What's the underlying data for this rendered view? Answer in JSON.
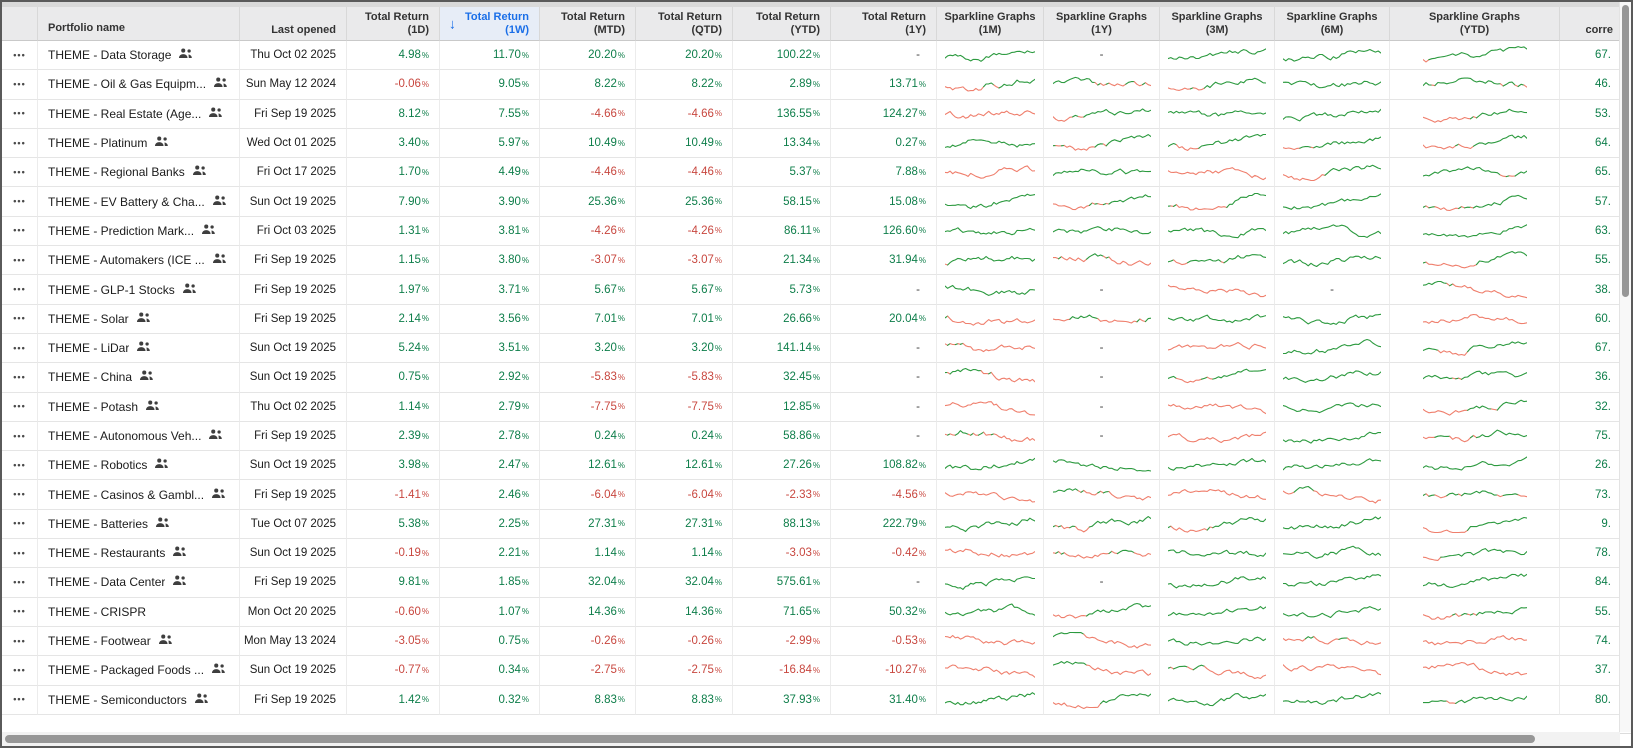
{
  "colors": {
    "positive": "#0e7e4a",
    "negative": "#c8473f",
    "spark_green": "#2c9a3f",
    "spark_red": "#ef7f6d",
    "sort_blue": "#1b6fe8",
    "header_bg": "#eaeaeb",
    "sorted_header_bg": "#e7edf7"
  },
  "icons": {
    "sort_desc": "↓",
    "row_menu": "•••",
    "shared_users": "shared-users"
  },
  "formats": {
    "percent_suffix": "%",
    "empty": "-"
  },
  "sort": {
    "column": "tr_1w",
    "direction": "desc"
  },
  "table": {
    "columns": [
      {
        "id": "menu",
        "label": ""
      },
      {
        "id": "name",
        "label": "Portfolio name"
      },
      {
        "id": "last_opened",
        "label": "Last opened"
      },
      {
        "id": "tr_1d",
        "l1": "Total Return",
        "l2": "(1D)"
      },
      {
        "id": "tr_1w",
        "l1": "Total Return",
        "l2": "(1W)",
        "sorted": "desc"
      },
      {
        "id": "tr_mtd",
        "l1": "Total Return",
        "l2": "(MTD)"
      },
      {
        "id": "tr_qtd",
        "l1": "Total Return",
        "l2": "(QTD)"
      },
      {
        "id": "tr_ytd",
        "l1": "Total Return",
        "l2": "(YTD)"
      },
      {
        "id": "tr_1y",
        "l1": "Total Return",
        "l2": "(1Y)"
      },
      {
        "id": "spark_1m",
        "l1": "Sparkline Graphs",
        "l2": "(1M)"
      },
      {
        "id": "spark_1y",
        "l1": "Sparkline Graphs",
        "l2": "(1Y)"
      },
      {
        "id": "spark_3m",
        "l1": "Sparkline Graphs",
        "l2": "(3M)"
      },
      {
        "id": "spark_6m",
        "l1": "Sparkline Graphs",
        "l2": "(6M)"
      },
      {
        "id": "spark_ytd",
        "l1": "Sparkline Graphs",
        "l2": "(YTD)"
      },
      {
        "id": "corre",
        "label": "corre"
      }
    ],
    "rows": [
      {
        "name": "THEME - Data Storage",
        "shared": true,
        "last_opened": "Thu Oct 02 2025",
        "returns": {
          "1d": "4.98",
          "1w": "11.70",
          "mtd": "20.20",
          "qtd": "20.20",
          "ytd": "100.22",
          "1y": null
        },
        "sparklines": {
          "1m": "g-up",
          "1y": null,
          "3m": "g-up",
          "6m": "g-up",
          "ytd": "m-up"
        },
        "corre": "67."
      },
      {
        "name": "THEME - Oil & Gas Equipm...",
        "shared": true,
        "last_opened": "Sun May 12 2024",
        "returns": {
          "1d": "-0.06",
          "1w": "9.05",
          "mtd": "8.22",
          "qtd": "8.22",
          "ytd": "2.89",
          "1y": "13.71"
        },
        "sparklines": {
          "1m": "m-up",
          "1y": "m-fl",
          "3m": "m-up",
          "6m": "g-fl",
          "ytd": "m-fl"
        },
        "corre": "46."
      },
      {
        "name": "THEME - Real Estate (Age...",
        "shared": true,
        "last_opened": "Fri Sep 19 2025",
        "returns": {
          "1d": "8.12",
          "1w": "7.55",
          "mtd": "-4.66",
          "qtd": "-4.66",
          "ytd": "136.55",
          "1y": "124.27"
        },
        "sparklines": {
          "1m": "r-fl",
          "1y": "m-up",
          "3m": "g-fl",
          "6m": "g-up",
          "ytd": "m-up"
        },
        "corre": "53."
      },
      {
        "name": "THEME - Platinum",
        "shared": true,
        "last_opened": "Wed Oct 01 2025",
        "returns": {
          "1d": "3.40",
          "1w": "5.97",
          "mtd": "10.49",
          "qtd": "10.49",
          "ytd": "13.34",
          "1y": "0.27"
        },
        "sparklines": {
          "1m": "m-fl",
          "1y": "m-up",
          "3m": "m-up",
          "6m": "m-up",
          "ytd": "m-up"
        },
        "corre": "64."
      },
      {
        "name": "THEME - Regional Banks",
        "shared": true,
        "last_opened": "Fri Oct 17 2025",
        "returns": {
          "1d": "1.70",
          "1w": "4.49",
          "mtd": "-4.46",
          "qtd": "-4.46",
          "ytd": "5.37",
          "1y": "7.88"
        },
        "sparklines": {
          "1m": "r-fl",
          "1y": "m-fl",
          "3m": "r-dn",
          "6m": "m-up",
          "ytd": "m-fl"
        },
        "corre": "65."
      },
      {
        "name": "THEME - EV Battery & Cha...",
        "shared": true,
        "last_opened": "Sun Oct 19 2025",
        "returns": {
          "1d": "7.90",
          "1w": "3.90",
          "mtd": "25.36",
          "qtd": "25.36",
          "ytd": "58.15",
          "1y": "15.08"
        },
        "sparklines": {
          "1m": "g-up",
          "1y": "m-up",
          "3m": "m-up",
          "6m": "g-up",
          "ytd": "m-up"
        },
        "corre": "57."
      },
      {
        "name": "THEME - Prediction Mark...",
        "shared": true,
        "last_opened": "Fri Oct 03 2025",
        "returns": {
          "1d": "1.31",
          "1w": "3.81",
          "mtd": "-4.26",
          "qtd": "-4.26",
          "ytd": "86.11",
          "1y": "126.60"
        },
        "sparklines": {
          "1m": "g-fl",
          "1y": "g-fl",
          "3m": "g-fl",
          "6m": "g-fl",
          "ytd": "g-up"
        },
        "corre": "63."
      },
      {
        "name": "THEME - Automakers (ICE ...",
        "shared": true,
        "last_opened": "Fri Sep 19 2025",
        "returns": {
          "1d": "1.15",
          "1w": "3.80",
          "mtd": "-3.07",
          "qtd": "-3.07",
          "ytd": "21.34",
          "1y": "31.94"
        },
        "sparklines": {
          "1m": "m-fl",
          "1y": "m-fl",
          "3m": "m-up",
          "6m": "g-up",
          "ytd": "m-up"
        },
        "corre": "55."
      },
      {
        "name": "THEME - GLP-1 Stocks",
        "shared": true,
        "last_opened": "Fri Sep 19 2025",
        "returns": {
          "1d": "1.97",
          "1w": "3.71",
          "mtd": "5.67",
          "qtd": "5.67",
          "ytd": "5.73",
          "1y": null
        },
        "sparklines": {
          "1m": "g-fl",
          "1y": null,
          "3m": "r-dn",
          "6m": null,
          "ytd": "m-dn"
        },
        "corre": "38."
      },
      {
        "name": "THEME - Solar",
        "shared": true,
        "last_opened": "Fri Sep 19 2025",
        "returns": {
          "1d": "2.14",
          "1w": "3.56",
          "mtd": "7.01",
          "qtd": "7.01",
          "ytd": "26.66",
          "1y": "20.04"
        },
        "sparklines": {
          "1m": "m-fl",
          "1y": "m-fl",
          "3m": "g-fl",
          "6m": "g-fl",
          "ytd": "r-fl"
        },
        "corre": "60."
      },
      {
        "name": "THEME - LiDar",
        "shared": true,
        "last_opened": "Sun Oct 19 2025",
        "returns": {
          "1d": "5.24",
          "1w": "3.51",
          "mtd": "3.20",
          "qtd": "3.20",
          "ytd": "141.14",
          "1y": null
        },
        "sparklines": {
          "1m": "m-fl",
          "1y": null,
          "3m": "r-fl",
          "6m": "g-up",
          "ytd": "m-up"
        },
        "corre": "67."
      },
      {
        "name": "THEME - China",
        "shared": true,
        "last_opened": "Sun Oct 19 2025",
        "returns": {
          "1d": "0.75",
          "1w": "2.92",
          "mtd": "-5.83",
          "qtd": "-5.83",
          "ytd": "32.45",
          "1y": null
        },
        "sparklines": {
          "1m": "m-dn",
          "1y": null,
          "3m": "m-up",
          "6m": "g-up",
          "ytd": "m-fl"
        },
        "corre": "36."
      },
      {
        "name": "THEME - Potash",
        "shared": true,
        "last_opened": "Thu Oct 02 2025",
        "returns": {
          "1d": "1.14",
          "1w": "2.79",
          "mtd": "-7.75",
          "qtd": "-7.75",
          "ytd": "12.85",
          "1y": null
        },
        "sparklines": {
          "1m": "r-dn",
          "1y": null,
          "3m": "r-dn",
          "6m": "g-fl",
          "ytd": "m-up"
        },
        "corre": "32."
      },
      {
        "name": "THEME - Autonomous Veh...",
        "shared": true,
        "last_opened": "Fri Sep 19 2025",
        "returns": {
          "1d": "2.39",
          "1w": "2.78",
          "mtd": "0.24",
          "qtd": "0.24",
          "ytd": "58.86",
          "1y": null
        },
        "sparklines": {
          "1m": "m-dn",
          "1y": null,
          "3m": "r-fl",
          "6m": "g-up",
          "ytd": "m-up"
        },
        "corre": "75."
      },
      {
        "name": "THEME - Robotics",
        "shared": true,
        "last_opened": "Sun Oct 19 2025",
        "returns": {
          "1d": "3.98",
          "1w": "2.47",
          "mtd": "12.61",
          "qtd": "12.61",
          "ytd": "27.26",
          "1y": "108.82"
        },
        "sparklines": {
          "1m": "g-up",
          "1y": "g-fl",
          "3m": "g-fl",
          "6m": "g-up",
          "ytd": "g-up"
        },
        "corre": "26."
      },
      {
        "name": "THEME - Casinos & Gambl...",
        "shared": true,
        "last_opened": "Fri Sep 19 2025",
        "returns": {
          "1d": "-1.41",
          "1w": "2.46",
          "mtd": "-6.04",
          "qtd": "-6.04",
          "ytd": "-2.33",
          "1y": "-4.56"
        },
        "sparklines": {
          "1m": "r-dn",
          "1y": "m-dn",
          "3m": "r-fl",
          "6m": "m-dn",
          "ytd": "m-fl"
        },
        "corre": "73."
      },
      {
        "name": "THEME - Batteries",
        "shared": true,
        "last_opened": "Tue Oct 07 2025",
        "returns": {
          "1d": "5.38",
          "1w": "2.25",
          "mtd": "27.31",
          "qtd": "27.31",
          "ytd": "88.13",
          "1y": "222.79"
        },
        "sparklines": {
          "1m": "g-up",
          "1y": "m-up",
          "3m": "m-up",
          "6m": "g-up",
          "ytd": "m-up"
        },
        "corre": "9."
      },
      {
        "name": "THEME - Restaurants",
        "shared": true,
        "last_opened": "Sun Oct 19 2025",
        "returns": {
          "1d": "-0.19",
          "1w": "2.21",
          "mtd": "1.14",
          "qtd": "1.14",
          "ytd": "-3.03",
          "1y": "-0.42"
        },
        "sparklines": {
          "1m": "r-fl",
          "1y": "m-fl",
          "3m": "g-fl",
          "6m": "g-fl",
          "ytd": "m-fl"
        },
        "corre": "78."
      },
      {
        "name": "THEME - Data Center",
        "shared": true,
        "last_opened": "Fri Sep 19 2025",
        "returns": {
          "1d": "9.81",
          "1w": "1.85",
          "mtd": "32.04",
          "qtd": "32.04",
          "ytd": "575.61",
          "1y": null
        },
        "sparklines": {
          "1m": "g-up",
          "1y": null,
          "3m": "g-up",
          "6m": "g-up",
          "ytd": "g-up"
        },
        "corre": "84."
      },
      {
        "name": "THEME - CRISPR",
        "shared": false,
        "last_opened": "Mon Oct 20 2025",
        "returns": {
          "1d": "-0.60",
          "1w": "1.07",
          "mtd": "14.36",
          "qtd": "14.36",
          "ytd": "71.65",
          "1y": "50.32"
        },
        "sparklines": {
          "1m": "g-fl",
          "1y": "m-up",
          "3m": "g-up",
          "6m": "g-up",
          "ytd": "m-up"
        },
        "corre": "55."
      },
      {
        "name": "THEME - Footwear",
        "shared": true,
        "last_opened": "Mon May 13 2024",
        "returns": {
          "1d": "-3.05",
          "1w": "0.75",
          "mtd": "-0.26",
          "qtd": "-0.26",
          "ytd": "-2.99",
          "1y": "-0.53"
        },
        "sparklines": {
          "1m": "r-dn",
          "1y": "m-dn",
          "3m": "g-fl",
          "6m": "m-fl",
          "ytd": "r-fl"
        },
        "corre": "74."
      },
      {
        "name": "THEME - Packaged Foods ...",
        "shared": true,
        "last_opened": "Sun Oct 19 2025",
        "returns": {
          "1d": "-0.77",
          "1w": "0.34",
          "mtd": "-2.75",
          "qtd": "-2.75",
          "ytd": "-16.84",
          "1y": "-10.27"
        },
        "sparklines": {
          "1m": "r-dn",
          "1y": "m-dn",
          "3m": "m-dn",
          "6m": "r-dn",
          "ytd": "r-dn"
        },
        "corre": "37."
      },
      {
        "name": "THEME - Semiconductors",
        "shared": true,
        "last_opened": "Fri Sep 19 2025",
        "returns": {
          "1d": "1.42",
          "1w": "0.32",
          "mtd": "8.83",
          "qtd": "8.83",
          "ytd": "37.93",
          "1y": "31.40"
        },
        "sparklines": {
          "1m": "g-up",
          "1y": "m-up",
          "3m": "g-up",
          "6m": "g-up",
          "ytd": "m-up"
        },
        "corre": "80."
      }
    ]
  }
}
